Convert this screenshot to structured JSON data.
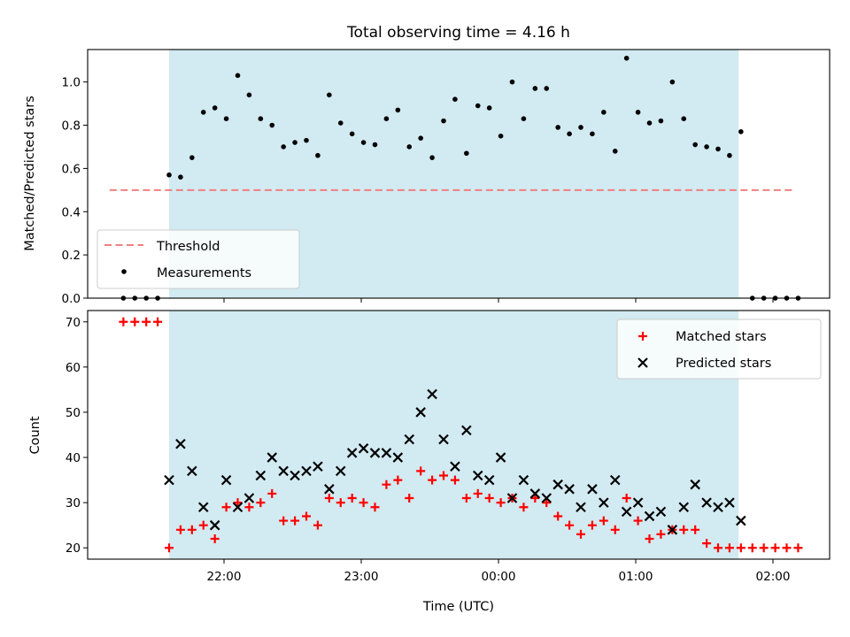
{
  "chart_data": {
    "type": "scatter",
    "title": "Total observing time = 4.16 h",
    "xlabel": "Time (UTC)",
    "x_ticks": [
      "22:00",
      "23:00",
      "00:00",
      "01:00",
      "02:00"
    ],
    "shaded_interval": [
      "21:36",
      "01:45"
    ],
    "colors": {
      "shade": "#add8e6",
      "threshold": "#f08080",
      "matched": "#ff0000",
      "predicted": "#000000",
      "measurement": "#000000"
    },
    "top": {
      "ylabel": "Matched/Predicted stars",
      "ylim": [
        0,
        1.15
      ],
      "yticks": [
        "0.0",
        "0.2",
        "0.4",
        "0.6",
        "0.8",
        "1.0"
      ],
      "threshold": {
        "label": "Threshold",
        "value": 0.5,
        "x_range": [
          "21:10",
          "02:10"
        ]
      },
      "measurements_label": "Measurements",
      "legend_position": "lower left",
      "x": [
        "21:16",
        "21:21",
        "21:26",
        "21:31",
        "21:36",
        "21:41",
        "21:46",
        "21:51",
        "21:56",
        "22:01",
        "22:06",
        "22:11",
        "22:16",
        "22:21",
        "22:26",
        "22:31",
        "22:36",
        "22:41",
        "22:46",
        "22:51",
        "22:56",
        "23:01",
        "23:06",
        "23:11",
        "23:16",
        "23:21",
        "23:26",
        "23:31",
        "23:36",
        "23:41",
        "23:46",
        "23:51",
        "23:56",
        "00:01",
        "00:06",
        "00:11",
        "00:16",
        "00:21",
        "00:26",
        "00:31",
        "00:36",
        "00:41",
        "00:46",
        "00:51",
        "00:56",
        "01:01",
        "01:06",
        "01:11",
        "01:16",
        "01:21",
        "01:26",
        "01:31",
        "01:36",
        "01:41",
        "01:46",
        "01:51",
        "01:56",
        "02:01",
        "02:06",
        "02:11"
      ],
      "y": [
        0,
        0,
        0,
        0,
        0.57,
        0.56,
        0.65,
        0.86,
        0.88,
        0.83,
        1.03,
        0.94,
        0.83,
        0.8,
        0.7,
        0.72,
        0.73,
        0.66,
        0.94,
        0.81,
        0.76,
        0.72,
        0.71,
        0.83,
        0.87,
        0.7,
        0.74,
        0.65,
        0.82,
        0.92,
        0.67,
        0.89,
        0.88,
        0.75,
        1.0,
        0.83,
        0.97,
        0.97,
        0.79,
        0.76,
        0.79,
        0.76,
        0.86,
        0.68,
        1.11,
        0.86,
        0.81,
        0.82,
        1.0,
        0.83,
        0.71,
        0.7,
        0.69,
        0.66,
        0.77,
        0,
        0,
        0,
        0,
        0
      ]
    },
    "bottom": {
      "ylabel": "Count",
      "ylim": [
        17.5,
        72.5
      ],
      "yticks": [
        "20",
        "30",
        "40",
        "50",
        "60",
        "70"
      ],
      "legend_position": "upper right",
      "series": [
        {
          "name": "Matched stars",
          "marker": "+",
          "x": [
            "21:16",
            "21:21",
            "21:26",
            "21:31",
            "21:36",
            "21:41",
            "21:46",
            "21:51",
            "21:56",
            "22:01",
            "22:06",
            "22:11",
            "22:16",
            "22:21",
            "22:26",
            "22:31",
            "22:36",
            "22:41",
            "22:46",
            "22:51",
            "22:56",
            "23:01",
            "23:06",
            "23:11",
            "23:16",
            "23:21",
            "23:26",
            "23:31",
            "23:36",
            "23:41",
            "23:46",
            "23:51",
            "23:56",
            "00:01",
            "00:06",
            "00:11",
            "00:16",
            "00:21",
            "00:26",
            "00:31",
            "00:36",
            "00:41",
            "00:46",
            "00:51",
            "00:56",
            "01:01",
            "01:06",
            "01:11",
            "01:16",
            "01:21",
            "01:26",
            "01:31",
            "01:36",
            "01:41",
            "01:46",
            "01:51",
            "01:56",
            "02:01",
            "02:06",
            "02:11"
          ],
          "y": [
            70,
            70,
            70,
            70,
            20,
            24,
            24,
            25,
            22,
            29,
            30,
            29,
            30,
            32,
            26,
            26,
            27,
            25,
            31,
            30,
            31,
            30,
            29,
            34,
            35,
            31,
            37,
            35,
            36,
            35,
            31,
            32,
            31,
            30,
            31,
            29,
            31,
            30,
            27,
            25,
            23,
            25,
            26,
            24,
            31,
            26,
            22,
            23,
            24,
            24,
            24,
            21,
            20,
            20,
            20,
            20,
            20,
            20,
            20,
            20
          ]
        },
        {
          "name": "Predicted stars",
          "marker": "x",
          "x": [
            "21:36",
            "21:41",
            "21:46",
            "21:51",
            "21:56",
            "22:01",
            "22:06",
            "22:11",
            "22:16",
            "22:21",
            "22:26",
            "22:31",
            "22:36",
            "22:41",
            "22:46",
            "22:51",
            "22:56",
            "23:01",
            "23:06",
            "23:11",
            "23:16",
            "23:21",
            "23:26",
            "23:31",
            "23:36",
            "23:41",
            "23:46",
            "23:51",
            "23:56",
            "00:01",
            "00:06",
            "00:11",
            "00:16",
            "00:21",
            "00:26",
            "00:31",
            "00:36",
            "00:41",
            "00:46",
            "00:51",
            "00:56",
            "01:01",
            "01:06",
            "01:11",
            "01:16",
            "01:21",
            "01:26",
            "01:31",
            "01:36",
            "01:41",
            "01:46"
          ],
          "y": [
            35,
            43,
            37,
            29,
            25,
            35,
            29,
            31,
            36,
            40,
            37,
            36,
            37,
            38,
            33,
            37,
            41,
            42,
            41,
            41,
            40,
            44,
            50,
            54,
            44,
            38,
            46,
            36,
            35,
            40,
            31,
            35,
            32,
            31,
            34,
            33,
            29,
            33,
            30,
            35,
            28,
            30,
            27,
            28,
            24,
            29,
            34,
            30,
            29,
            30,
            26
          ]
        }
      ]
    }
  }
}
